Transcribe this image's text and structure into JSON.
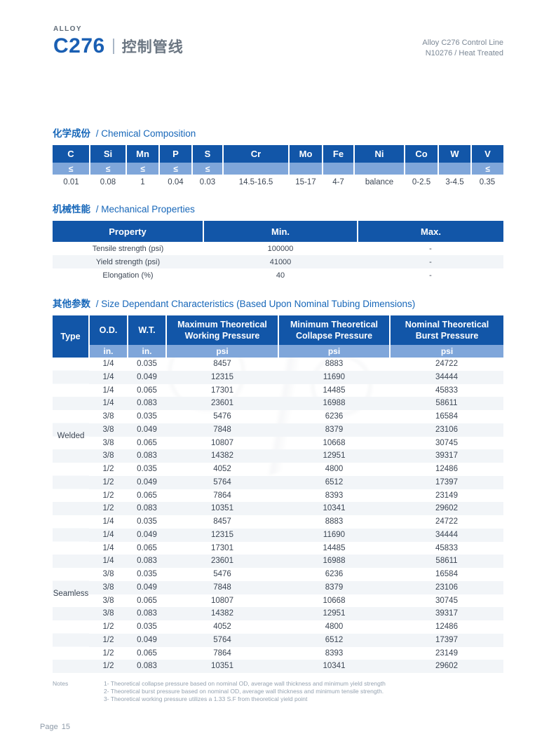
{
  "header": {
    "alloy_label": "ALLOY",
    "model": "C276",
    "subtitle_cn": "控制管线",
    "right_line1": "Alloy C276 Control Line",
    "right_line2": "N10276 / Heat Treated"
  },
  "colors": {
    "primary_blue": "#1256A8",
    "light_blue": "#7FA6DA",
    "title_blue": "#1767B9",
    "row_stripe": "#F2F5F8",
    "body_text": "#3C4654",
    "muted_text": "#8D9AA8"
  },
  "sections": {
    "chemical": {
      "title_cn": "化学成份",
      "title_en": "/ Chemical Composition",
      "columns": [
        "C",
        "Si",
        "Mn",
        "P",
        "S",
        "Cr",
        "Mo",
        "Fe",
        "Ni",
        "Co",
        "W",
        "V"
      ],
      "limits": [
        "≤",
        "≤",
        "≤",
        "≤",
        "≤",
        "",
        "",
        "",
        "",
        "",
        "",
        "≤"
      ],
      "values": [
        "0.01",
        "0.08",
        "1",
        "0.04",
        "0.03",
        "14.5-16.5",
        "15-17",
        "4-7",
        "balance",
        "0-2.5",
        "3-4.5",
        "0.35"
      ]
    },
    "mechanical": {
      "title_cn": "机械性能",
      "title_en": "/ Mechanical Properties",
      "columns": [
        "Property",
        "Min.",
        "Max."
      ],
      "rows": [
        [
          "Tensile strength (psi)",
          "100000",
          "-"
        ],
        [
          "Yield strength (psi)",
          "41000",
          "-"
        ],
        [
          "Elongation (%)",
          "40",
          "-"
        ]
      ]
    },
    "size": {
      "title_cn": "其他参数",
      "title_en": "/ Size Dependant Characteristics (Based Upon Nominal Tubing Dimensions)",
      "columns": [
        "Type",
        "O.D.",
        "W.T.",
        "Maximum Theoretical Working Pressure",
        "Minimum Theoretical Collapse Pressure",
        "Nominal Theoretical Burst Pressure"
      ],
      "units": [
        "in.",
        "in.",
        "psi",
        "psi",
        "psi"
      ],
      "groups": [
        {
          "type": "Welded",
          "rows": [
            [
              "1/4",
              "0.035",
              "8457",
              "8883",
              "24722"
            ],
            [
              "1/4",
              "0.049",
              "12315",
              "11690",
              "34444"
            ],
            [
              "1/4",
              "0.065",
              "17301",
              "14485",
              "45833"
            ],
            [
              "1/4",
              "0.083",
              "23601",
              "16988",
              "58611"
            ],
            [
              "3/8",
              "0.035",
              "5476",
              "6236",
              "16584"
            ],
            [
              "3/8",
              "0.049",
              "7848",
              "8379",
              "23106"
            ],
            [
              "3/8",
              "0.065",
              "10807",
              "10668",
              "30745"
            ],
            [
              "3/8",
              "0.083",
              "14382",
              "12951",
              "39317"
            ],
            [
              "1/2",
              "0.035",
              "4052",
              "4800",
              "12486"
            ],
            [
              "1/2",
              "0.049",
              "5764",
              "6512",
              "17397"
            ],
            [
              "1/2",
              "0.065",
              "7864",
              "8393",
              "23149"
            ],
            [
              "1/2",
              "0.083",
              "10351",
              "10341",
              "29602"
            ]
          ]
        },
        {
          "type": "Seamless",
          "rows": [
            [
              "1/4",
              "0.035",
              "8457",
              "8883",
              "24722"
            ],
            [
              "1/4",
              "0.049",
              "12315",
              "11690",
              "34444"
            ],
            [
              "1/4",
              "0.065",
              "17301",
              "14485",
              "45833"
            ],
            [
              "1/4",
              "0.083",
              "23601",
              "16988",
              "58611"
            ],
            [
              "3/8",
              "0.035",
              "5476",
              "6236",
              "16584"
            ],
            [
              "3/8",
              "0.049",
              "7848",
              "8379",
              "23106"
            ],
            [
              "3/8",
              "0.065",
              "10807",
              "10668",
              "30745"
            ],
            [
              "3/8",
              "0.083",
              "14382",
              "12951",
              "39317"
            ],
            [
              "1/2",
              "0.035",
              "4052",
              "4800",
              "12486"
            ],
            [
              "1/2",
              "0.049",
              "5764",
              "6512",
              "17397"
            ],
            [
              "1/2",
              "0.065",
              "7864",
              "8393",
              "23149"
            ],
            [
              "1/2",
              "0.083",
              "10351",
              "10341",
              "29602"
            ]
          ]
        }
      ]
    }
  },
  "notes": {
    "label": "Notes",
    "items": [
      "1- Theoretical collapse pressure based on nominal OD, average wall thickness and minimum yield strength",
      "2- Theoretical burst pressure based on nominal OD, average wall thickness and minimum tensile strength.",
      "3- Theoretical working pressure utilizes a 1.33 S.F from theoretical yield point"
    ]
  },
  "footer": {
    "page_label": "Page",
    "page_number": "15"
  }
}
